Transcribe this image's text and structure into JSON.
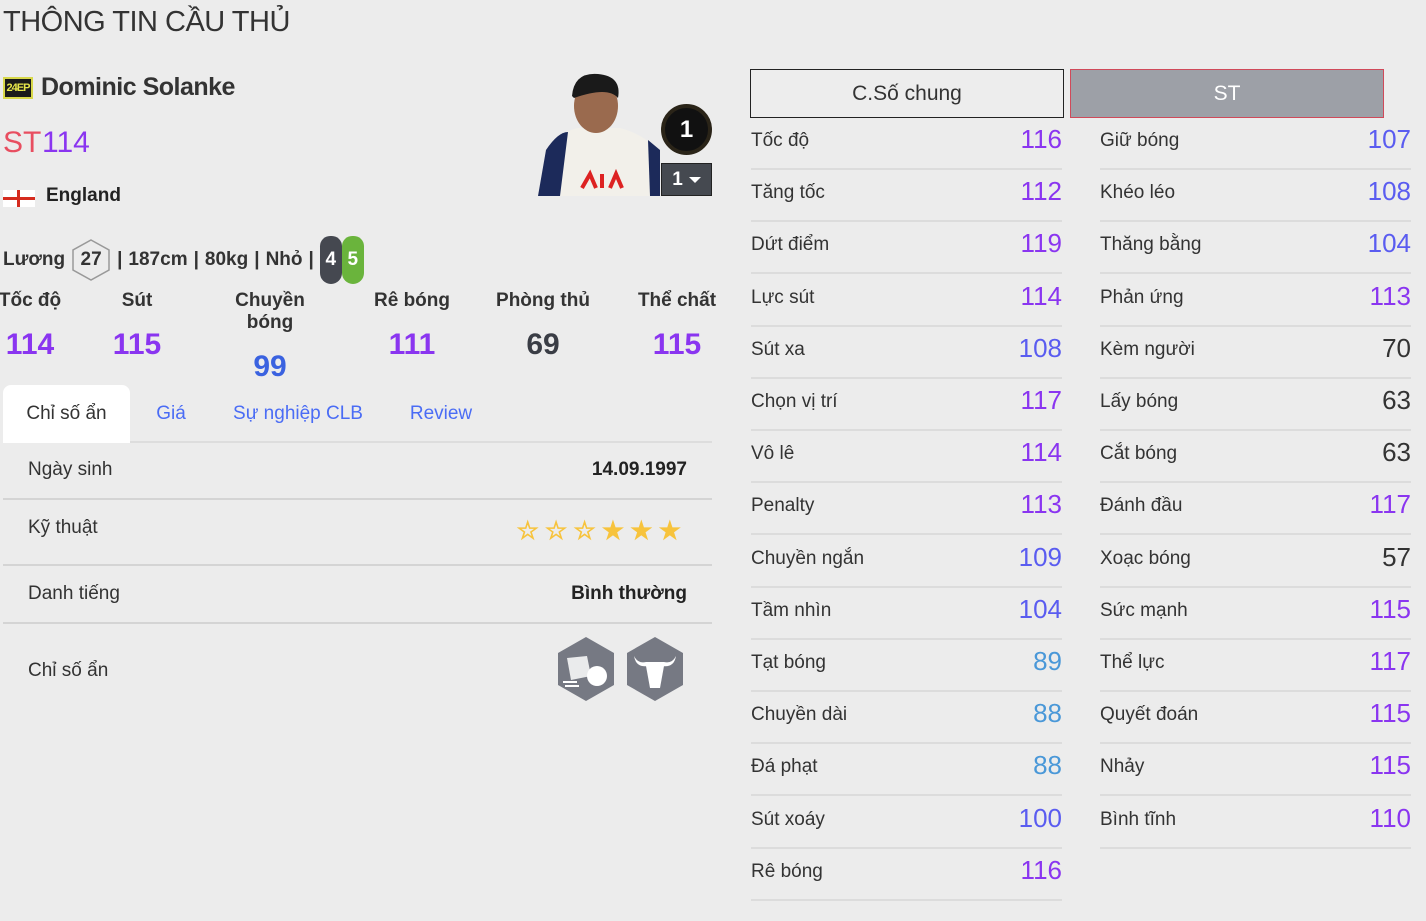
{
  "page_title": "THÔNG TIN CẦU THỦ",
  "player": {
    "season_badge": "24EP",
    "name": "Dominic Solanke",
    "position": "ST",
    "ovr": "114",
    "nation": "England",
    "salary_label": "Lương",
    "salary": "27",
    "height": "187cm",
    "weight": "80kg",
    "body": "Nhỏ",
    "left_foot": "4",
    "right_foot": "5",
    "rank": "1",
    "level": "1"
  },
  "summary": [
    {
      "label": "Tốc độ",
      "value": "114",
      "color": "#8a35f0"
    },
    {
      "label": "Sút",
      "value": "115",
      "color": "#8a35f0"
    },
    {
      "label": "Chuyền bóng",
      "value": "99",
      "color": "#3a62e0"
    },
    {
      "label": "Rê bóng",
      "value": "111",
      "color": "#8a35f0"
    },
    {
      "label": "Phòng thủ",
      "value": "69",
      "color": "#3a3d45"
    },
    {
      "label": "Thể chất",
      "value": "115",
      "color": "#8a35f0"
    }
  ],
  "tabs": [
    "Chỉ số ẩn",
    "Giá",
    "Sự nghiệp CLB",
    "Review"
  ],
  "active_tab": 0,
  "info": {
    "birth_label": "Ngày sinh",
    "birth": "14.09.1997",
    "skill_label": "Kỹ thuật",
    "skill_stars_filled": 3,
    "skill_stars_total": 6,
    "fame_label": "Danh tiếng",
    "fame": "Bình thường",
    "traits_label": "Chỉ số ẩn",
    "traits": [
      "speed-dribbler-trait-icon",
      "bull-trait-icon"
    ]
  },
  "stat_tabs": {
    "general": "C.Số chung",
    "position": "ST"
  },
  "stats_left": [
    [
      "Tốc độ",
      "116"
    ],
    [
      "Tăng tốc",
      "112"
    ],
    [
      "Dứt điểm",
      "119"
    ],
    [
      "Lực sút",
      "114"
    ],
    [
      "Sút xa",
      "108"
    ],
    [
      "Chọn vị trí",
      "117"
    ],
    [
      "Vô lê",
      "114"
    ],
    [
      "Penalty",
      "113"
    ],
    [
      "Chuyền ngắn",
      "109"
    ],
    [
      "Tầm nhìn",
      "104"
    ],
    [
      "Tạt bóng",
      "89"
    ],
    [
      "Chuyền dài",
      "88"
    ],
    [
      "Đá phạt",
      "88"
    ],
    [
      "Sút xoáy",
      "100"
    ],
    [
      "Rê bóng",
      "116"
    ]
  ],
  "stats_right": [
    [
      "Giữ bóng",
      "107"
    ],
    [
      "Khéo léo",
      "108"
    ],
    [
      "Thăng bằng",
      "104"
    ],
    [
      "Phản ứng",
      "113"
    ],
    [
      "Kèm người",
      "70"
    ],
    [
      "Lấy bóng",
      "63"
    ],
    [
      "Cắt bóng",
      "63"
    ],
    [
      "Đánh đầu",
      "117"
    ],
    [
      "Xoạc bóng",
      "57"
    ],
    [
      "Sức mạnh",
      "115"
    ],
    [
      "Thể lực",
      "117"
    ],
    [
      "Quyết đoán",
      "115"
    ],
    [
      "Nhảy",
      "115"
    ],
    [
      "Bình tĩnh",
      "110"
    ]
  ],
  "stat_colors": {
    "110+": "#8a35f0",
    "100-109": "#5a5cf0",
    "80-89": "#4a98d8",
    "below": "#333333"
  }
}
